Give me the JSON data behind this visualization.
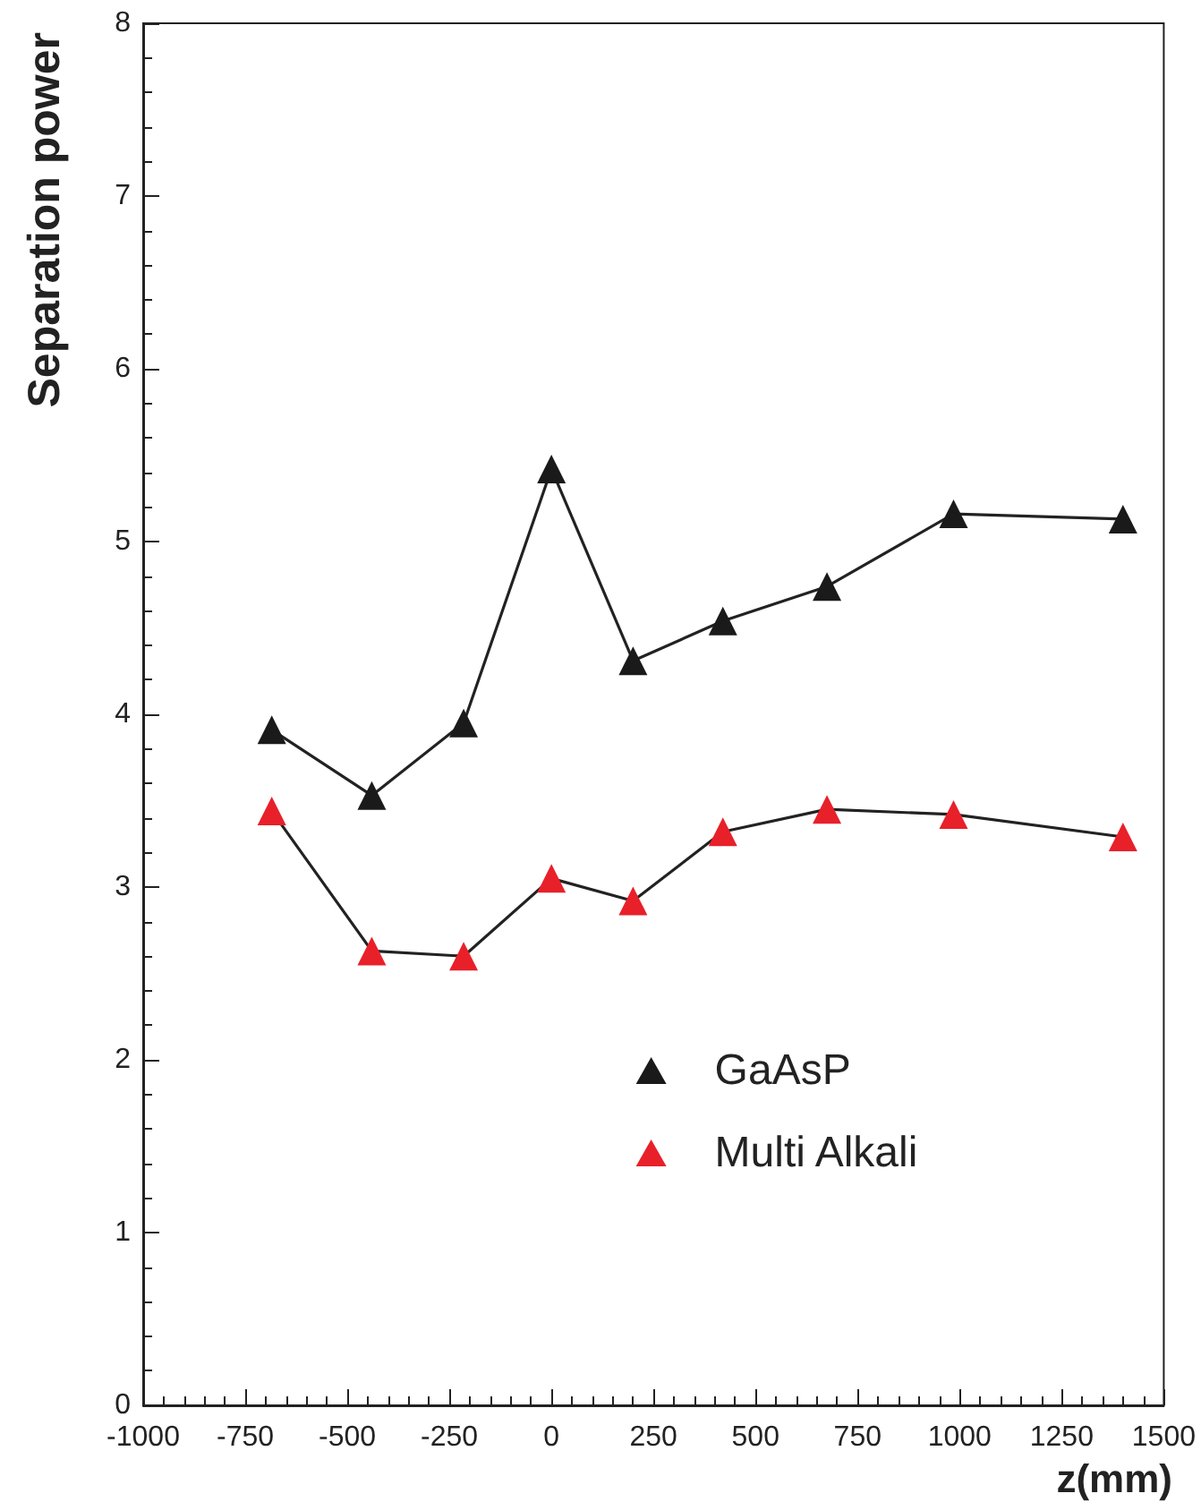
{
  "chart_data": {
    "type": "line",
    "xlabel": "z(mm)",
    "ylabel": "Separation power",
    "x": [
      -685,
      -440,
      -215,
      0,
      200,
      420,
      675,
      985,
      1400
    ],
    "series": [
      {
        "name": "GaAsP",
        "color": "#1a1a1a",
        "values": [
          3.91,
          3.53,
          3.95,
          5.42,
          4.31,
          4.54,
          4.74,
          5.16,
          5.13
        ]
      },
      {
        "name": "Multi Alkali",
        "color": "#e8202a",
        "values": [
          3.44,
          2.63,
          2.6,
          3.05,
          2.92,
          3.32,
          3.45,
          3.42,
          3.29
        ]
      }
    ],
    "xlim": [
      -1000,
      1500
    ],
    "xticks": [
      -1000,
      -750,
      -500,
      -250,
      0,
      250,
      500,
      750,
      1000,
      1250,
      1500
    ],
    "ylim": [
      0,
      8
    ],
    "yticks": [
      0,
      1,
      2,
      3,
      4,
      5,
      6,
      7,
      8
    ],
    "legend": "bottom right",
    "marker": "triangle",
    "line_style": "solid"
  }
}
